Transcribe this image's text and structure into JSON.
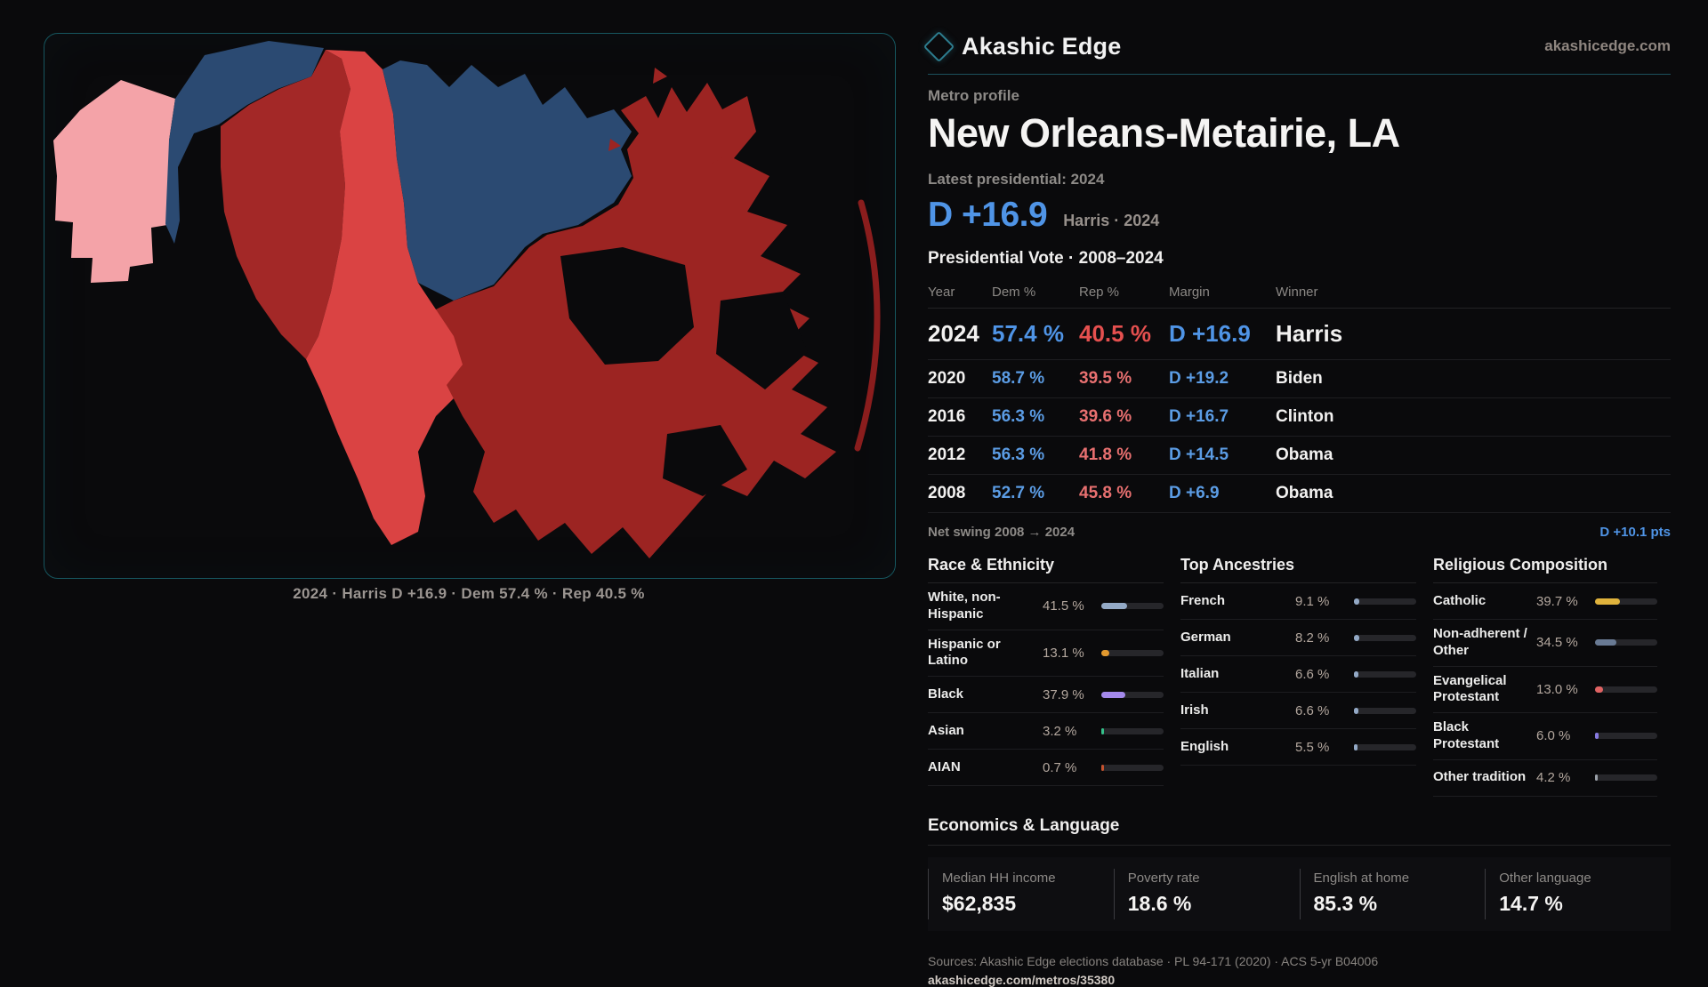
{
  "brand": {
    "name": "Akashic Edge",
    "url": "akashicedge.com"
  },
  "profile": {
    "kicker": "Metro profile",
    "title": "New Orleans-Metairie, LA",
    "latest_label": "Latest presidential: 2024",
    "headline_margin": "D +16.9",
    "headline_caption": "Harris · 2024"
  },
  "map": {
    "caption": "2024 · Harris D +16.9 · Dem 57.4 % · Rep 40.5 %"
  },
  "vote_table": {
    "title": "Presidential Vote · 2008–2024",
    "columns": [
      "Year",
      "Dem %",
      "Rep %",
      "Margin",
      "Winner"
    ],
    "rows": [
      {
        "year": "2024",
        "dem": "57.4 %",
        "rep": "40.5 %",
        "margin": "D +16.9",
        "winner": "Harris",
        "highlight": true
      },
      {
        "year": "2020",
        "dem": "58.7 %",
        "rep": "39.5 %",
        "margin": "D +19.2",
        "winner": "Biden",
        "highlight": false
      },
      {
        "year": "2016",
        "dem": "56.3 %",
        "rep": "39.6 %",
        "margin": "D +16.7",
        "winner": "Clinton",
        "highlight": false
      },
      {
        "year": "2012",
        "dem": "56.3 %",
        "rep": "41.8 %",
        "margin": "D +14.5",
        "winner": "Obama",
        "highlight": false
      },
      {
        "year": "2008",
        "dem": "52.7 %",
        "rep": "45.8 %",
        "margin": "D +6.9",
        "winner": "Obama",
        "highlight": false
      }
    ]
  },
  "net_swing": {
    "label": "Net swing 2008 → 2024",
    "value": "D +10.1 pts"
  },
  "demographics": [
    {
      "title": "Race & Ethnicity",
      "rows": [
        {
          "label": "White, non-Hispanic",
          "value": "41.5 %",
          "pct": 41.5,
          "color": "#93a9c6"
        },
        {
          "label": "Hispanic or Latino",
          "value": "13.1 %",
          "pct": 13.1,
          "color": "#e2992e"
        },
        {
          "label": "Black",
          "value": "37.9 %",
          "pct": 37.9,
          "color": "#a489ec"
        },
        {
          "label": "Asian",
          "value": "3.2 %",
          "pct": 3.2,
          "color": "#35c08a"
        },
        {
          "label": "AIAN",
          "value": "0.7 %",
          "pct": 0.7,
          "color": "#c3522f"
        }
      ]
    },
    {
      "title": "Top Ancestries",
      "rows": [
        {
          "label": "French",
          "value": "9.1 %",
          "pct": 9.1,
          "color": "#93a9c6"
        },
        {
          "label": "German",
          "value": "8.2 %",
          "pct": 8.2,
          "color": "#93a9c6"
        },
        {
          "label": "Italian",
          "value": "6.6 %",
          "pct": 6.6,
          "color": "#93a9c6"
        },
        {
          "label": "Irish",
          "value": "6.6 %",
          "pct": 6.6,
          "color": "#93a9c6"
        },
        {
          "label": "English",
          "value": "5.5 %",
          "pct": 5.5,
          "color": "#93a9c6"
        }
      ]
    },
    {
      "title": "Religious Composition",
      "rows": [
        {
          "label": "Catholic",
          "value": "39.7 %",
          "pct": 39.7,
          "color": "#e0b33c"
        },
        {
          "label": "Non-adherent / Other",
          "value": "34.5 %",
          "pct": 34.5,
          "color": "#697a94"
        },
        {
          "label": "Evangelical Protestant",
          "value": "13.0 %",
          "pct": 13.0,
          "color": "#e06363"
        },
        {
          "label": "Black Protestant",
          "value": "6.0 %",
          "pct": 6.0,
          "color": "#8679e0"
        },
        {
          "label": "Other tradition",
          "value": "4.2 %",
          "pct": 4.2,
          "color": "#9aa0a8"
        }
      ]
    }
  ],
  "economics": {
    "title": "Economics & Language",
    "stats": [
      {
        "label": "Median HH income",
        "value": "$62,835"
      },
      {
        "label": "Poverty rate",
        "value": "18.6 %"
      },
      {
        "label": "English at home",
        "value": "85.3 %"
      },
      {
        "label": "Other language",
        "value": "14.7 %"
      }
    ]
  },
  "footer": {
    "sources": "Sources: Akashic Edge elections database · PL 94-171 (2020) · ACS 5-yr B04006",
    "link": "akashicedge.com/metros/35380"
  },
  "map_colors": {
    "dem_navy": "#2b4a72",
    "lean_pink": "#f4a3a8",
    "rep_bright": "#da4343",
    "rep_brick": "#9c2422",
    "rep_brick2": "#a32827"
  }
}
